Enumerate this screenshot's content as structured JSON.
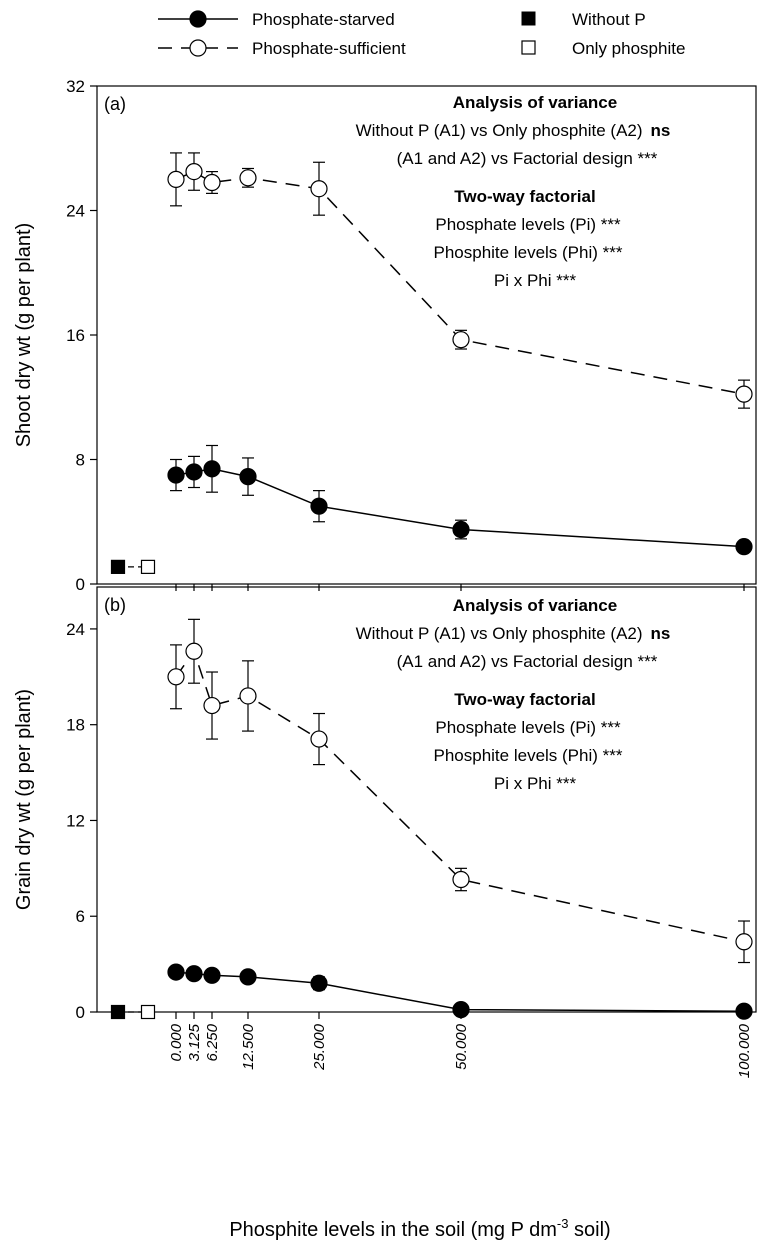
{
  "legend": {
    "starved": "Phosphate-starved",
    "sufficient": "Phosphate-sufficient",
    "without_p": "Without P",
    "only_phosphite": "Only phosphite"
  },
  "xlabel": {
    "main": "Phosphite levels in the soil (mg P dm",
    "sup": "-3",
    "end": " soil)"
  },
  "chart_data": [
    {
      "type": "line",
      "panel_label": "(a)",
      "ylabel": "Shoot dry wt (g per plant)",
      "ylim": [
        0,
        32
      ],
      "yticks": [
        0,
        8,
        16,
        24,
        32
      ],
      "x": [
        0,
        3.125,
        6.25,
        12.5,
        25,
        50,
        100
      ],
      "series": [
        {
          "name": "Phosphate-starved",
          "values": [
            7.0,
            7.2,
            7.4,
            6.9,
            5.0,
            3.5,
            2.4
          ],
          "errors": [
            1.0,
            1.0,
            1.5,
            1.2,
            1.0,
            0.6,
            0.3
          ]
        },
        {
          "name": "Phosphate-sufficient",
          "values": [
            26.0,
            26.5,
            25.8,
            26.1,
            25.4,
            15.7,
            12.2
          ],
          "errors": [
            1.7,
            1.2,
            0.7,
            0.6,
            1.7,
            0.6,
            0.9
          ]
        }
      ],
      "controls": [
        {
          "name": "Without P",
          "value": 1.1
        },
        {
          "name": "Only phosphite",
          "value": 1.1
        }
      ],
      "annotations": {
        "anova_title": "Analysis of variance",
        "line1": "Without P (A1) vs Only phosphite (A2)",
        "line1_sig": "ns",
        "line2": "(A1 and A2) vs Factorial  design  ***",
        "factorial_title": "Two-way factorial",
        "line3": "Phosphate levels (Pi)  ***",
        "line4": "Phosphite levels (Phi)  ***",
        "line5": "Pi x Phi  ***"
      }
    },
    {
      "type": "line",
      "panel_label": "(b)",
      "ylabel": "Grain dry wt (g per plant)",
      "ylim": [
        0,
        26
      ],
      "yticks": [
        0,
        6,
        12,
        18,
        24
      ],
      "x": [
        0,
        3.125,
        6.25,
        12.5,
        25,
        50,
        100
      ],
      "xtick_labels": [
        "0.000",
        "3.125",
        "6.250",
        "12.500",
        "25.000",
        "50.000",
        "100.000"
      ],
      "series": [
        {
          "name": "Phosphate-starved",
          "values": [
            2.5,
            2.4,
            2.3,
            2.2,
            1.8,
            0.15,
            0.05
          ],
          "errors": [
            0.2,
            0.2,
            0.3,
            0.3,
            0.4,
            0.1,
            0.05
          ]
        },
        {
          "name": "Phosphate-sufficient",
          "values": [
            21.0,
            22.6,
            19.2,
            19.8,
            17.1,
            8.3,
            4.4
          ],
          "errors": [
            2.0,
            2.0,
            2.1,
            2.2,
            1.6,
            0.7,
            1.3
          ]
        }
      ],
      "controls": [
        {
          "name": "Without P",
          "value": 0.0
        },
        {
          "name": "Only phosphite",
          "value": 0.0
        }
      ],
      "annotations": {
        "anova_title": "Analysis of variance",
        "line1": "Without P (A1) vs Only phosphite (A2)",
        "line1_sig": "ns",
        "line2": "(A1 and A2) vs Factorial  design  ***",
        "factorial_title": "Two-way factorial",
        "line3": "Phosphate levels (Pi)  ***",
        "line4": "Phosphite levels (Phi)  ***",
        "line5": "Pi x Phi  ***"
      }
    }
  ]
}
